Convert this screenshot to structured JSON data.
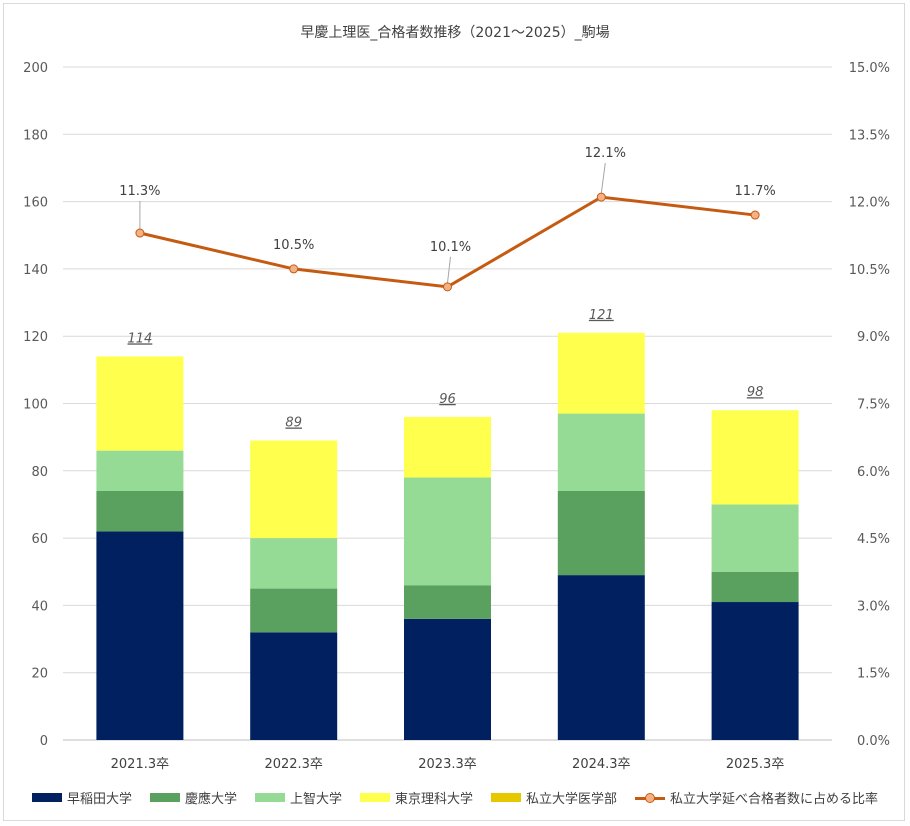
{
  "chart_data": {
    "type": "bar",
    "stacked": true,
    "title": "早慶上理医_合格者数推移（2021～2025）_駒場",
    "categories": [
      "2021.3卒",
      "2022.3卒",
      "2023.3卒",
      "2024.3卒",
      "2025.3卒"
    ],
    "ylim": [
      0,
      200
    ],
    "yticks": [
      "0",
      "20",
      "40",
      "60",
      "80",
      "100",
      "120",
      "140",
      "160",
      "180",
      "200"
    ],
    "y2lim": [
      0,
      15
    ],
    "y2ticks": [
      "0.0%",
      "1.5%",
      "3.0%",
      "4.5%",
      "6.0%",
      "7.5%",
      "9.0%",
      "10.5%",
      "12.0%",
      "13.5%",
      "15.0%"
    ],
    "grid": true,
    "legend_position": "bottom",
    "series": [
      {
        "name": "早稲田大学",
        "color": "#002060",
        "values": [
          62,
          32,
          36,
          49,
          41
        ]
      },
      {
        "name": "慶應大学",
        "color": "#5aa05f",
        "values": [
          12,
          13,
          10,
          25,
          9
        ]
      },
      {
        "name": "上智大学",
        "color": "#95db95",
        "values": [
          12,
          15,
          32,
          23,
          20
        ]
      },
      {
        "name": "東京理科大学",
        "color": "#ffff4d",
        "values": [
          28,
          29,
          18,
          24,
          28
        ]
      },
      {
        "name": "私立大学医学部",
        "color": "#e6c800",
        "values": [
          0,
          0,
          0,
          0,
          0
        ]
      }
    ],
    "totals": [
      "114",
      "89",
      "96",
      "121",
      "98"
    ],
    "line_series": {
      "name": "私立大学延べ合格者数に占める比率",
      "color": "#c55a11",
      "marker_color": "#f4b183",
      "axis": "secondary",
      "values": [
        11.3,
        10.5,
        10.1,
        12.1,
        11.7
      ],
      "labels": [
        "11.3%",
        "10.5%",
        "10.1%",
        "12.1%",
        "11.7%"
      ]
    }
  }
}
